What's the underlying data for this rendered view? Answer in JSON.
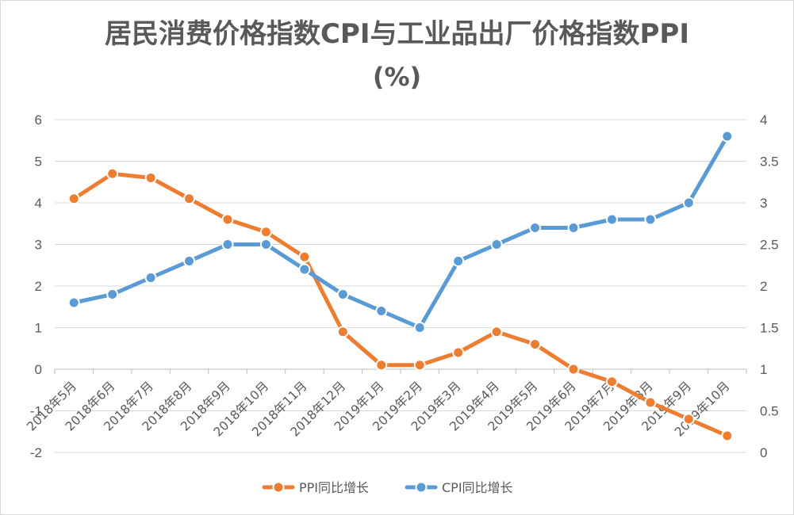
{
  "chart_data": {
    "type": "line",
    "title_line1": "居民消费价格指数CPI与工业品出厂价格指数PPI",
    "title_line2": "(%)",
    "categories": [
      "2018年5月",
      "2018年6月",
      "2018年7月",
      "2018年8月",
      "2018年9月",
      "2018年10月",
      "2018年11月",
      "2018年12月",
      "2019年1月",
      "2019年2月",
      "2019年3月",
      "2019年4月",
      "2019年5月",
      "2019年6月",
      "2019年7月",
      "2019年8月",
      "2019年9月",
      "2019年10月"
    ],
    "y_left": {
      "min": -2,
      "max": 6,
      "step": 1,
      "ticks": [
        "-2",
        "-1",
        "0",
        "1",
        "2",
        "3",
        "4",
        "5",
        "6"
      ]
    },
    "y_right": {
      "min": 0,
      "max": 4,
      "step": 0.5,
      "ticks": [
        "0",
        "0.5",
        "1",
        "1.5",
        "2",
        "2.5",
        "3",
        "3.5",
        "4"
      ]
    },
    "grid": true,
    "legend_position": "bottom",
    "series": [
      {
        "name": "PPI同比增长",
        "axis": "left",
        "color": "#ED7D31",
        "values": [
          4.1,
          4.7,
          4.6,
          4.1,
          3.6,
          3.3,
          2.7,
          0.9,
          0.1,
          0.1,
          0.4,
          0.9,
          0.6,
          0.0,
          -0.3,
          -0.8,
          -1.2,
          -1.6
        ]
      },
      {
        "name": "CPI同比增长",
        "axis": "right",
        "color": "#5B9BD5",
        "values": [
          1.8,
          1.9,
          2.1,
          2.3,
          2.5,
          2.5,
          2.2,
          1.9,
          1.7,
          1.5,
          2.3,
          2.5,
          2.7,
          2.7,
          2.8,
          2.8,
          3.0,
          3.8
        ]
      }
    ]
  }
}
